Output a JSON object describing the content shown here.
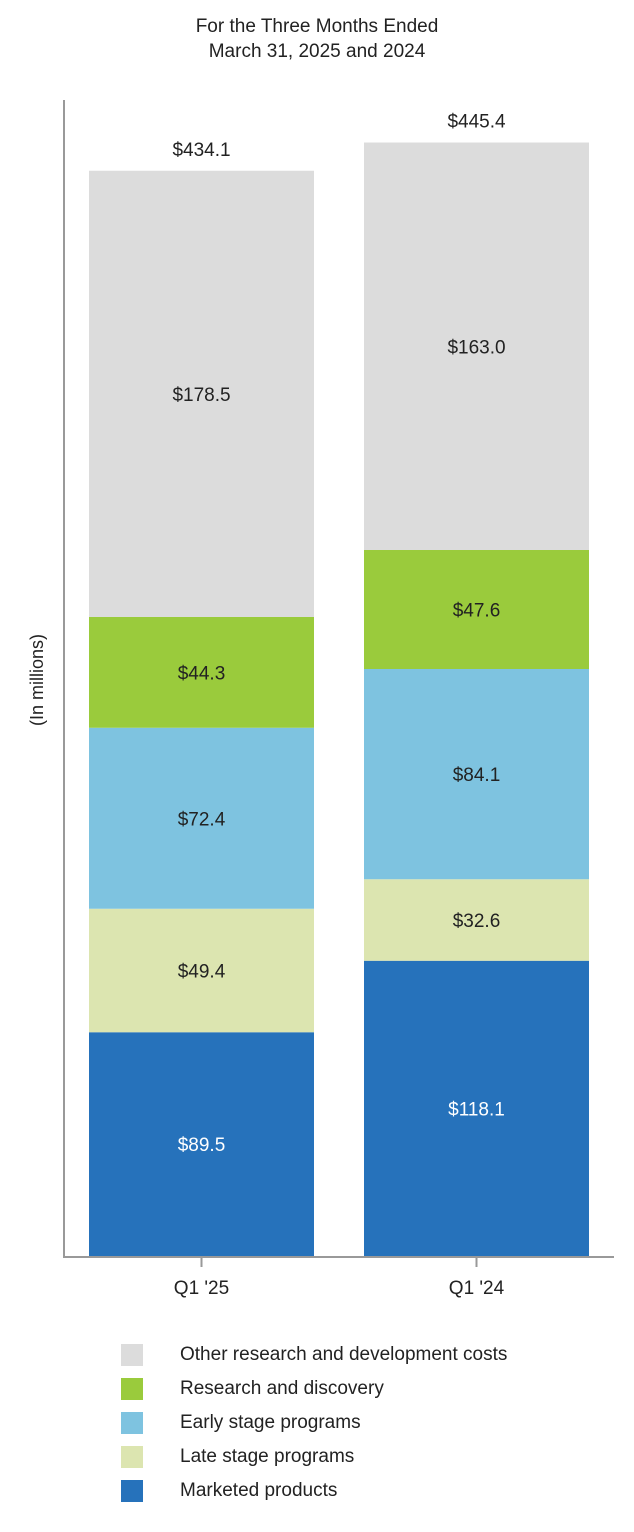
{
  "chart_data": {
    "type": "bar",
    "stacked": true,
    "title": [
      "For the Three Months Ended",
      "March 31, 2025 and 2024"
    ],
    "ylabel": "(In millions)",
    "xlabel": "",
    "categories": [
      "Q1 '25",
      "Q1 '24"
    ],
    "totals": [
      434.1,
      445.4
    ],
    "total_labels": [
      "$434.1",
      "$445.4"
    ],
    "ylim": [
      0,
      480
    ],
    "grid": false,
    "legend_position": "bottom",
    "series": [
      {
        "name": "Marketed products",
        "color": "#2672bb",
        "text_color": "#ffffff",
        "values": [
          89.5,
          118.1
        ],
        "labels": [
          "$89.5",
          "$118.1"
        ]
      },
      {
        "name": "Late stage programs",
        "color": "#dce5b0",
        "text_color": "#222222",
        "values": [
          49.4,
          32.6
        ],
        "labels": [
          "$49.4",
          "$32.6"
        ]
      },
      {
        "name": "Early stage programs",
        "color": "#7ec3e0",
        "text_color": "#222222",
        "values": [
          72.4,
          84.1
        ],
        "labels": [
          "$72.4",
          "$84.1"
        ]
      },
      {
        "name": "Research and discovery",
        "color": "#9acb3c",
        "text_color": "#222222",
        "values": [
          44.3,
          47.6
        ],
        "labels": [
          "$44.3",
          "$47.6"
        ]
      },
      {
        "name": "Other research and development costs",
        "color": "#dcdcdc",
        "text_color": "#222222",
        "values": [
          178.5,
          163.0
        ],
        "labels": [
          "$178.5",
          "$163.0"
        ]
      }
    ],
    "legend_order": [
      "Other research and development costs",
      "Research and discovery",
      "Early stage programs",
      "Late stage programs",
      "Marketed products"
    ]
  }
}
